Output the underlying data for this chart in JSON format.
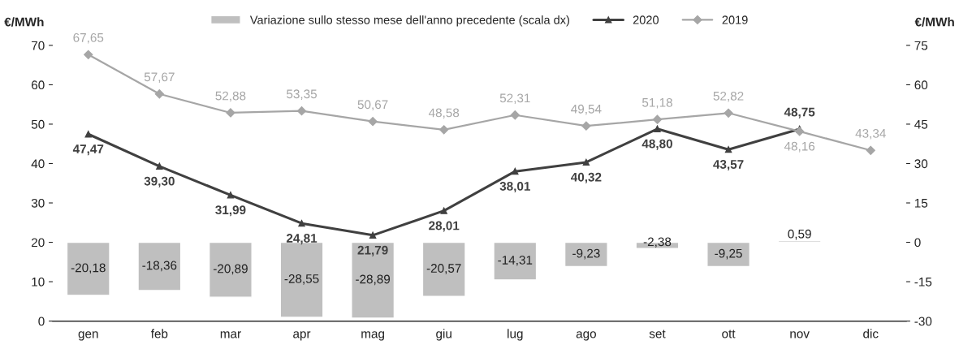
{
  "chart_data": {
    "type": "line",
    "ylabel": "€/MWh",
    "y2label": "€/MWh",
    "categories": [
      "gen",
      "feb",
      "mar",
      "apr",
      "mag",
      "giu",
      "lug",
      "ago",
      "set",
      "ott",
      "nov",
      "dic"
    ],
    "series": [
      {
        "name": "Variazione sullo stesso mese dell'anno precedente (scala dx)",
        "type": "bar",
        "axis": "y2",
        "color": "#bfbfbf",
        "values": [
          -20.18,
          -18.36,
          -20.89,
          -28.55,
          -28.89,
          -20.57,
          -14.31,
          -9.23,
          -2.38,
          -9.25,
          0.59,
          null
        ],
        "value_labels": [
          "-20,18",
          "-18,36",
          "-20,89",
          "-28,55",
          "-28,89",
          "-20,57",
          "-14,31",
          "-9,23",
          "-2,38",
          "-9,25",
          "0,59",
          null
        ]
      },
      {
        "name": "2020",
        "color": "#404040",
        "marker": "triangle",
        "values": [
          47.47,
          39.3,
          31.99,
          24.81,
          21.79,
          28.01,
          38.01,
          40.32,
          48.8,
          43.57,
          48.75,
          null
        ],
        "value_labels": [
          "47,47",
          "39,30",
          "31,99",
          "24,81",
          "21,79",
          "28,01",
          "38,01",
          "40,32",
          "48,80",
          "43,57",
          "48,75",
          null
        ]
      },
      {
        "name": "2019",
        "color": "#a6a6a6",
        "marker": "diamond",
        "values": [
          67.65,
          57.67,
          52.88,
          53.35,
          50.67,
          48.58,
          52.31,
          49.54,
          51.18,
          52.82,
          48.16,
          43.34
        ],
        "value_labels": [
          "67,65",
          "57,67",
          "52,88",
          "53,35",
          "50,67",
          "48,58",
          "52,31",
          "49,54",
          "51,18",
          "52,82",
          "48,16",
          "43,34"
        ]
      }
    ],
    "ylim": [
      0,
      70
    ],
    "yticks": [
      0,
      10,
      20,
      30,
      40,
      50,
      60,
      70
    ],
    "y2lim": [
      -30,
      75
    ],
    "y2ticks": [
      -30,
      -15,
      0,
      15,
      30,
      45,
      60,
      75
    ],
    "grid": false,
    "legend": "top"
  }
}
